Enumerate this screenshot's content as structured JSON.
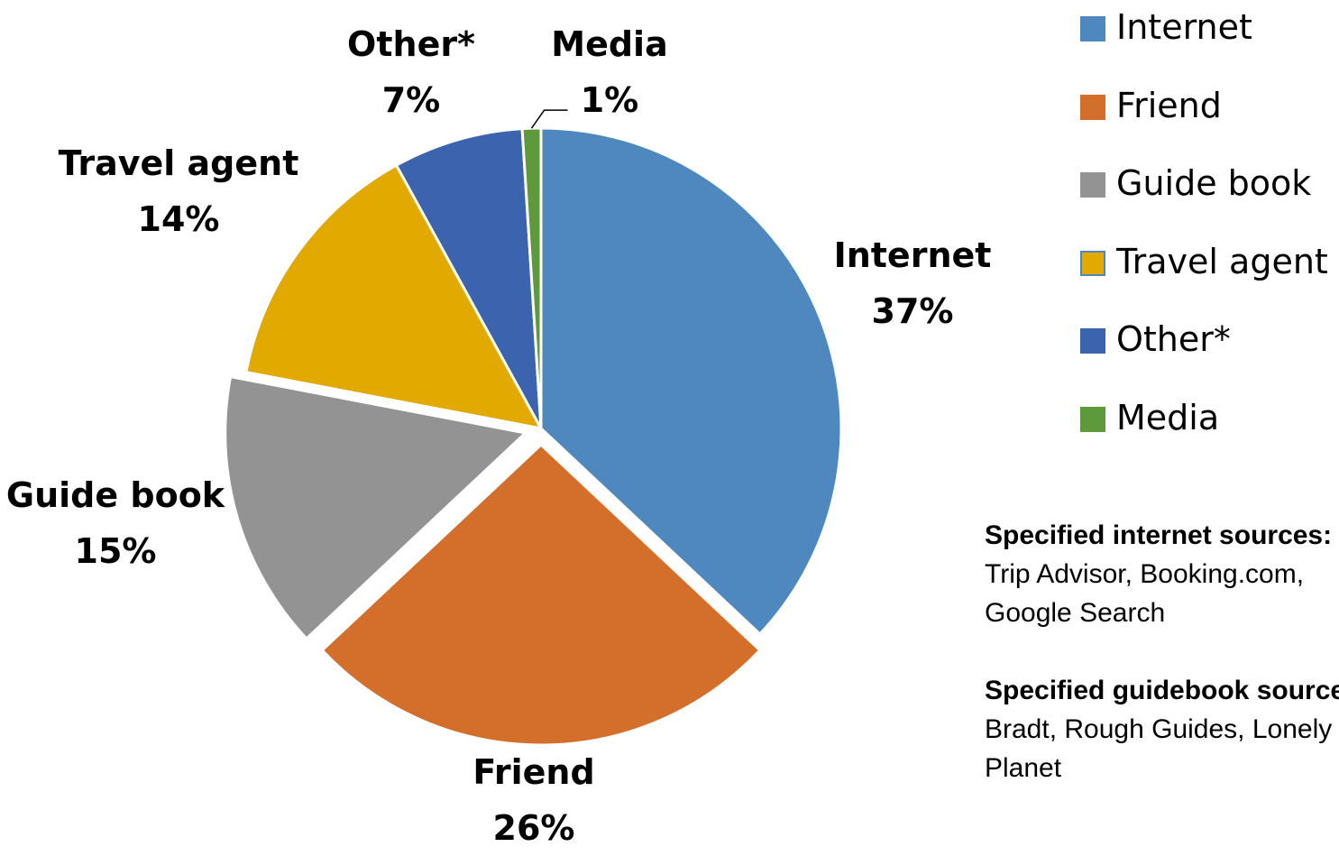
{
  "chart_data": {
    "type": "pie",
    "slices": [
      {
        "label": "Internet",
        "value": 37,
        "value_label": "37%",
        "color": "#4F88BF"
      },
      {
        "label": "Friend",
        "value": 26,
        "value_label": "26%",
        "color": "#D46F2B"
      },
      {
        "label": "Guide book",
        "value": 15,
        "value_label": "15%",
        "color": "#939393"
      },
      {
        "label": "Travel agent",
        "value": 14,
        "value_label": "14%",
        "color": "#E2A900"
      },
      {
        "label": "Other*",
        "value": 7,
        "value_label": "7%",
        "color": "#3C64AE"
      },
      {
        "label": "Media",
        "value": 1,
        "value_label": "1%",
        "color": "#5E9A3C"
      }
    ],
    "exploded": [
      "Friend",
      "Guide book"
    ],
    "legend_position": "right"
  },
  "notes": [
    {
      "title": "Specified internet sources:",
      "body": "Trip Advisor, Booking.com, Google Search"
    },
    {
      "title": "Specified guidebook sources:",
      "body": "Bradt, Rough Guides, Lonely Planet"
    }
  ]
}
